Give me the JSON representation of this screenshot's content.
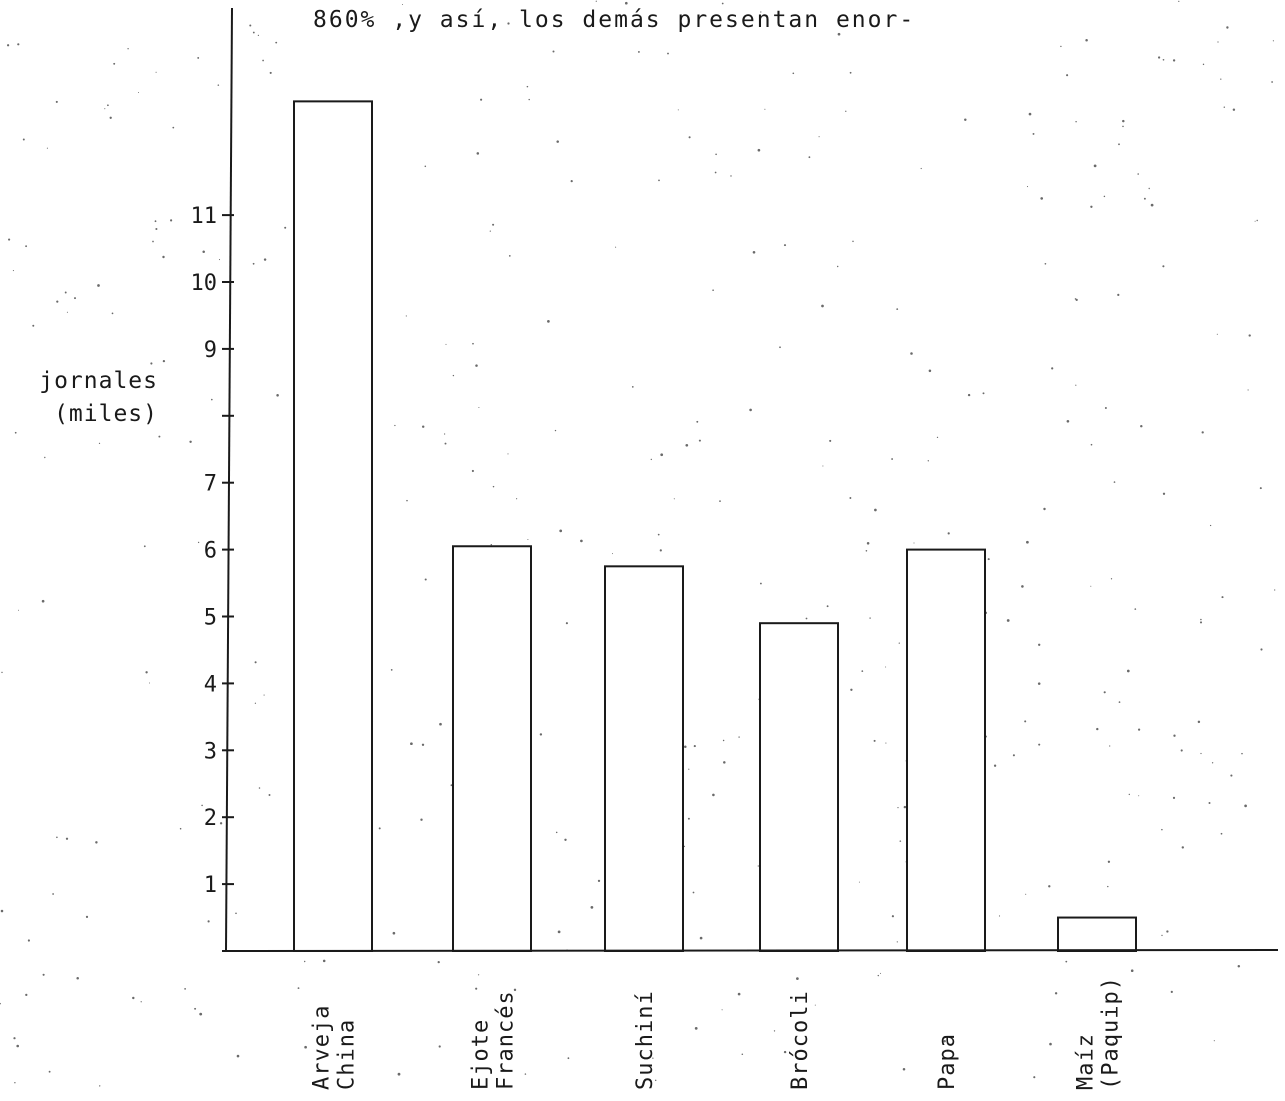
{
  "page": {
    "header_text": "860% ,y así,  los demás  presentan  enor-"
  },
  "chart_data": {
    "type": "bar",
    "ylabel": [
      "jornales",
      "(miles)"
    ],
    "categories": [
      [
        "Arveja",
        "China"
      ],
      [
        "Ejote",
        "Francés"
      ],
      [
        "Suchiní"
      ],
      [
        "Brócoli"
      ],
      [
        "Papa"
      ],
      [
        "Maíz",
        "(Paquip)"
      ]
    ],
    "values": [
      12.7,
      6.05,
      5.75,
      4.9,
      6.0,
      0.5
    ],
    "y_ticks": [
      1,
      2,
      3,
      4,
      5,
      6,
      7,
      9,
      10,
      11
    ],
    "y_tick_marks": [
      1,
      2,
      3,
      4,
      5,
      6,
      7,
      8,
      9,
      10,
      11
    ],
    "ylim": [
      0,
      14
    ],
    "grid": false,
    "legend": "none"
  }
}
